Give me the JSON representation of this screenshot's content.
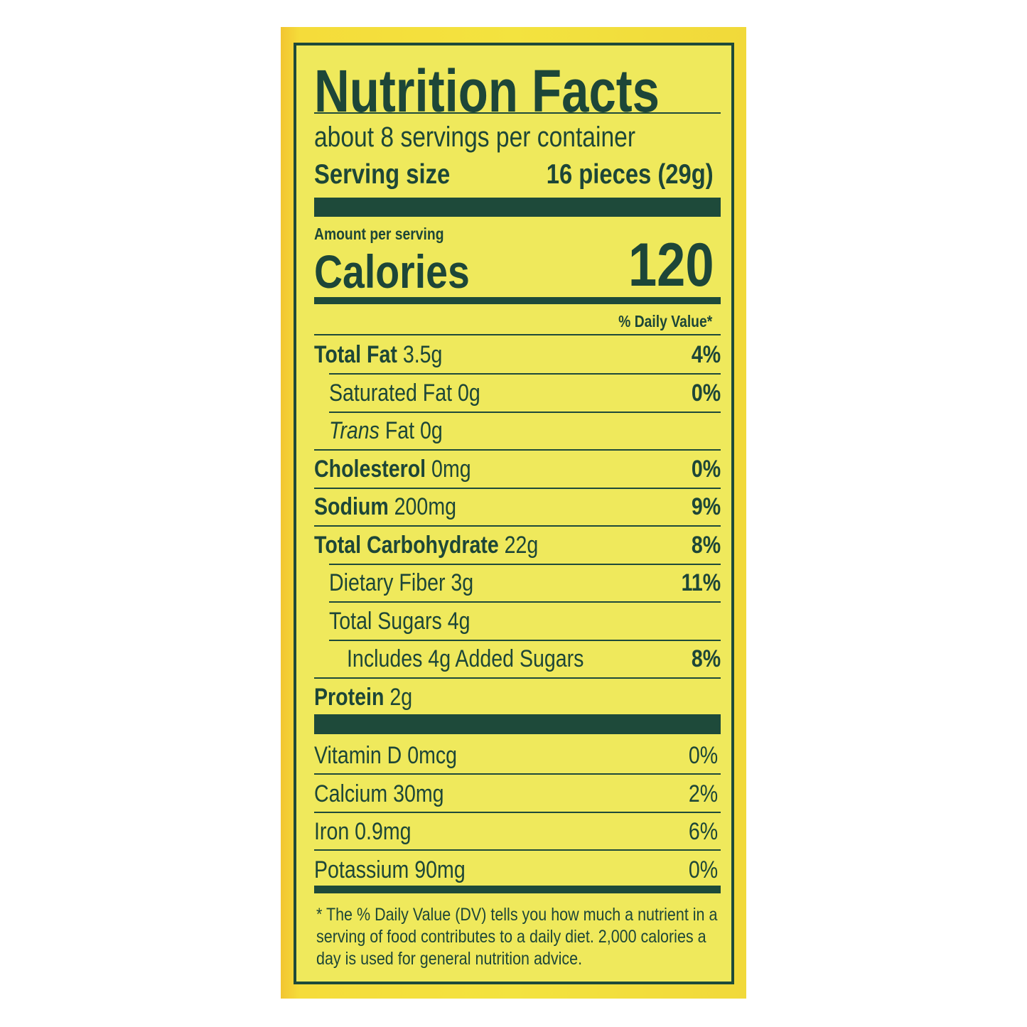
{
  "title": "Nutrition Facts",
  "servings_per_container": "about 8 servings per container",
  "serving_size_label": "Serving size",
  "serving_size_value": "16 pieces (29g)",
  "amount_per_serving": "Amount per serving",
  "calories_label": "Calories",
  "calories_value": "120",
  "daily_value_header": "% Daily Value*",
  "nutrients": [
    {
      "name": "Total Fat",
      "amount": "3.5g",
      "dv": "4%"
    },
    {
      "name": "Saturated Fat",
      "amount": "0g",
      "dv": "0%"
    },
    {
      "name": "Trans",
      "suffix": "Fat",
      "amount": "0g",
      "dv": ""
    },
    {
      "name": "Cholesterol",
      "amount": "0mg",
      "dv": "0%"
    },
    {
      "name": "Sodium",
      "amount": "200mg",
      "dv": "9%"
    },
    {
      "name": "Total Carbohydrate",
      "amount": "22g",
      "dv": "8%"
    },
    {
      "name": "Dietary Fiber",
      "amount": "3g",
      "dv": "11%"
    },
    {
      "name": "Total Sugars",
      "amount": "4g",
      "dv": ""
    },
    {
      "name": "Includes 4g Added Sugars",
      "amount": "",
      "dv": "8%"
    },
    {
      "name": "Protein",
      "amount": "2g",
      "dv": ""
    }
  ],
  "vitamins": [
    {
      "name": "Vitamin D 0mcg",
      "dv": "0%"
    },
    {
      "name": "Calcium 30mg",
      "dv": "2%"
    },
    {
      "name": "Iron 0.9mg",
      "dv": "6%"
    },
    {
      "name": "Potassium 90mg",
      "dv": "0%"
    }
  ],
  "footnote": "* The % Daily Value (DV) tells you how much a nutrient in a serving of food contributes to a daily diet. 2,000 calories a day is used for general nutrition advice.",
  "colors": {
    "ink": "#1e4a3a",
    "label_bg": "#efe95c",
    "panel": "#f3e33f"
  }
}
